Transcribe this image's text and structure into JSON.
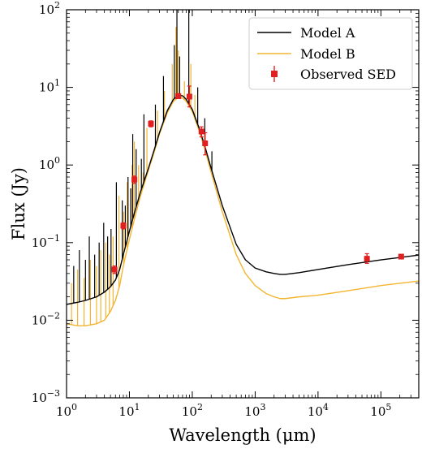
{
  "chart_data": {
    "type": "line",
    "xlabel": "Wavelength (μm)",
    "ylabel": "Flux (Jy)",
    "x_scale": "log",
    "y_scale": "log",
    "xlim": [
      1,
      400000
    ],
    "ylim": [
      0.001,
      100
    ],
    "x_ticks": [
      {
        "value": 1,
        "base": "10",
        "exp": "0"
      },
      {
        "value": 10,
        "base": "10",
        "exp": "1"
      },
      {
        "value": 100,
        "base": "10",
        "exp": "2"
      },
      {
        "value": 1000,
        "base": "10",
        "exp": "3"
      },
      {
        "value": 10000,
        "base": "10",
        "exp": "4"
      },
      {
        "value": 100000,
        "base": "10",
        "exp": "5"
      }
    ],
    "y_ticks": [
      {
        "value": 0.001,
        "base": "10",
        "exp": "−3"
      },
      {
        "value": 0.01,
        "base": "10",
        "exp": "−2"
      },
      {
        "value": 0.1,
        "base": "10",
        "exp": "−1"
      },
      {
        "value": 1,
        "base": "10",
        "exp": "0"
      },
      {
        "value": 10,
        "base": "10",
        "exp": "1"
      },
      {
        "value": 100,
        "base": "10",
        "exp": "2"
      }
    ],
    "grid": false,
    "legend_position": "top-right",
    "series": [
      {
        "name": "Model A",
        "kind": "line",
        "color": "#000000",
        "x": [
          1,
          1.5,
          2,
          3,
          4,
          5,
          6,
          7,
          8,
          10,
          12,
          15,
          20,
          25,
          30,
          40,
          50,
          60,
          70,
          80,
          100,
          130,
          160,
          200,
          300,
          500,
          700,
          1000,
          1500,
          2000,
          2500,
          3000,
          5000,
          10000,
          30000,
          100000,
          400000
        ],
        "y": [
          0.016,
          0.017,
          0.018,
          0.02,
          0.023,
          0.027,
          0.033,
          0.045,
          0.07,
          0.14,
          0.24,
          0.45,
          0.9,
          1.6,
          2.6,
          5.0,
          7.0,
          7.9,
          7.8,
          7.0,
          5.2,
          2.9,
          1.7,
          0.9,
          0.3,
          0.095,
          0.06,
          0.047,
          0.042,
          0.04,
          0.039,
          0.039,
          0.041,
          0.045,
          0.052,
          0.06,
          0.069
        ],
        "line_peaks": [
          [
            1.3,
            0.05
          ],
          [
            1.6,
            0.08
          ],
          [
            2.0,
            0.06
          ],
          [
            2.3,
            0.12
          ],
          [
            2.8,
            0.07
          ],
          [
            3.3,
            0.1
          ],
          [
            3.9,
            0.18
          ],
          [
            4.5,
            0.12
          ],
          [
            5.1,
            0.15
          ],
          [
            6.2,
            0.6
          ],
          [
            7.7,
            0.35
          ],
          [
            8.6,
            0.3
          ],
          [
            9.5,
            0.7
          ],
          [
            10.5,
            0.5
          ],
          [
            11.3,
            2.5
          ],
          [
            12.8,
            1.6
          ],
          [
            15.5,
            1.2
          ],
          [
            17,
            4.5
          ],
          [
            25.9,
            6.0
          ],
          [
            34.8,
            14
          ],
          [
            51.8,
            35
          ],
          [
            57,
            100
          ],
          [
            63,
            25
          ],
          [
            88,
            100
          ],
          [
            122,
            10
          ],
          [
            158,
            4
          ],
          [
            205,
            1.5
          ]
        ]
      },
      {
        "name": "Model B",
        "kind": "line",
        "color": "#f2b530",
        "x": [
          1,
          1.5,
          2,
          3,
          4,
          5,
          6,
          7,
          8,
          10,
          12,
          15,
          20,
          25,
          30,
          40,
          50,
          60,
          70,
          80,
          100,
          130,
          160,
          200,
          300,
          500,
          700,
          1000,
          1500,
          2000,
          2500,
          3000,
          5000,
          10000,
          30000,
          100000,
          400000
        ],
        "y": [
          0.009,
          0.0085,
          0.0085,
          0.009,
          0.01,
          0.013,
          0.018,
          0.028,
          0.05,
          0.11,
          0.2,
          0.4,
          0.85,
          1.5,
          2.5,
          4.7,
          6.6,
          7.4,
          7.3,
          6.6,
          4.9,
          2.7,
          1.55,
          0.8,
          0.25,
          0.07,
          0.04,
          0.028,
          0.022,
          0.02,
          0.019,
          0.019,
          0.02,
          0.021,
          0.024,
          0.028,
          0.032
        ],
        "line_peaks": [
          [
            1.2,
            0.03
          ],
          [
            1.5,
            0.045
          ],
          [
            1.9,
            0.035
          ],
          [
            2.4,
            0.06
          ],
          [
            3.0,
            0.05
          ],
          [
            3.5,
            0.08
          ],
          [
            4.2,
            0.1
          ],
          [
            4.8,
            0.07
          ],
          [
            5.5,
            0.12
          ],
          [
            6.8,
            0.4
          ],
          [
            8.1,
            0.25
          ],
          [
            9.2,
            0.6
          ],
          [
            11.0,
            1.0
          ],
          [
            12.0,
            2.0
          ],
          [
            14.0,
            1.0
          ],
          [
            16.5,
            0.8
          ],
          [
            19.0,
            3.0
          ],
          [
            28.0,
            5.0
          ],
          [
            36.0,
            9.0
          ],
          [
            48.0,
            20
          ],
          [
            55.0,
            60
          ],
          [
            60.0,
            30
          ],
          [
            75.0,
            12
          ],
          [
            95.0,
            20
          ],
          [
            110.0,
            8
          ]
        ]
      },
      {
        "name": "Observed SED",
        "kind": "points",
        "color": "#e02020",
        "points": [
          {
            "x": 5.8,
            "y": 0.045,
            "err": [
              0.04,
              0.05
            ]
          },
          {
            "x": 8.0,
            "y": 0.165,
            "err": [
              0.15,
              0.18
            ]
          },
          {
            "x": 12.0,
            "y": 0.65,
            "err": [
              0.58,
              0.72
            ]
          },
          {
            "x": 22.0,
            "y": 3.4,
            "err": [
              3.1,
              3.7
            ]
          },
          {
            "x": 60.0,
            "y": 7.7,
            "err": [
              7.2,
              8.3
            ]
          },
          {
            "x": 90.0,
            "y": 7.6,
            "err": [
              5.6,
              10.4
            ]
          },
          {
            "x": 140.0,
            "y": 2.7,
            "err": [
              2.3,
              3.1
            ]
          },
          {
            "x": 160.0,
            "y": 1.9,
            "err": [
              1.35,
              2.6
            ]
          },
          {
            "x": 60000.0,
            "y": 0.062,
            "err": [
              0.054,
              0.072
            ]
          },
          {
            "x": 210000.0,
            "y": 0.066,
            "err": [
              0.063,
              0.069
            ]
          }
        ]
      }
    ]
  }
}
